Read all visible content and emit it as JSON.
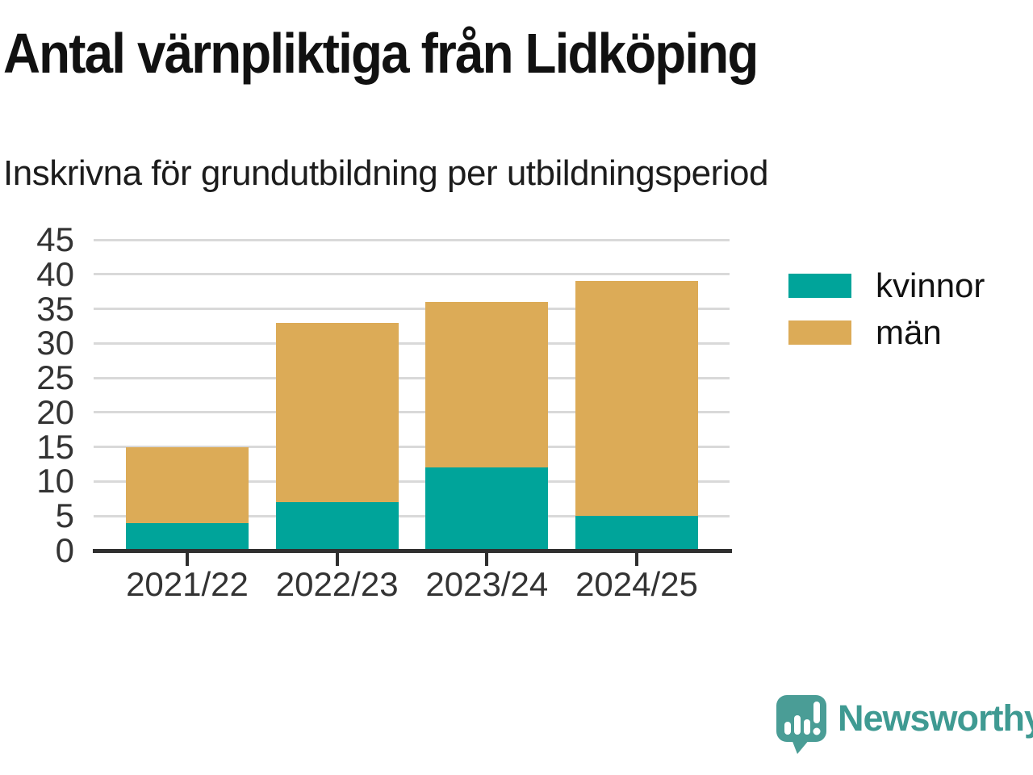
{
  "header": {
    "title": "Antal värnpliktiga från Lidköping",
    "subtitle": "Inskrivna för grundutbildning per utbildningsperiod"
  },
  "chart_data": {
    "type": "bar",
    "stacked": true,
    "title": "Antal värnpliktiga från Lidköping",
    "subtitle": "Inskrivna för grundutbildning per utbildningsperiod",
    "categories": [
      "2021/22",
      "2022/23",
      "2023/24",
      "2024/25"
    ],
    "series": [
      {
        "name": "kvinnor",
        "color": "#00a49a",
        "values": [
          4,
          7,
          12,
          5
        ]
      },
      {
        "name": "män",
        "color": "#dcab57",
        "values": [
          11,
          26,
          24,
          34
        ]
      }
    ],
    "stacked_totals": [
      15,
      33,
      36,
      39
    ],
    "xlabel": "",
    "ylabel": "",
    "ylim": [
      0,
      45
    ],
    "yticks": [
      0,
      5,
      10,
      15,
      20,
      25,
      30,
      35,
      40,
      45
    ],
    "grid": "horizontal-light",
    "legend_position": "right"
  },
  "colors": {
    "kvinnor": "#00a49a",
    "män": "#dcab57",
    "axis": "#2f2f2f",
    "grid": "#d9d9d9",
    "tick_label": "#333333",
    "title": "#111111",
    "brand": "#3f9a92",
    "brand_icon": "#4a9d96"
  },
  "footer": {
    "brand_name": "Newsworthy"
  },
  "icons": {
    "brand_logo": "speech-bubble-bar-chart-icon"
  }
}
